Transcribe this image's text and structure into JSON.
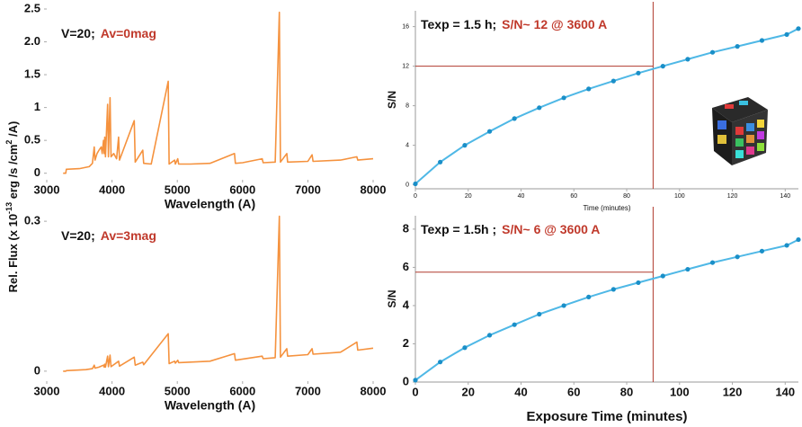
{
  "shared_ylabel": [
    "Rel. Flux (x 10",
    "-13",
    " erg /s /cm",
    "2",
    " /A)"
  ],
  "chart_data": [
    {
      "type": "line",
      "markers": false,
      "color": "#f5923e",
      "annotation": [
        "V=20;",
        "Av=0mag"
      ],
      "annotation_colors": [
        "#111111",
        "#c0392b"
      ],
      "xlabel": "Wavelength (A)",
      "x": [
        3250,
        3290,
        3300,
        3500,
        3650,
        3700,
        3727,
        3740,
        3770,
        3800,
        3835,
        3850,
        3869,
        3880,
        3889,
        3900,
        3933,
        3945,
        3970,
        3985,
        4026,
        4070,
        4101,
        4115,
        4340,
        4355,
        4471,
        4485,
        4600,
        4861,
        4875,
        4959,
        4970,
        5007,
        5020,
        5200,
        5500,
        5876,
        5890,
        6000,
        6300,
        6315,
        6500,
        6563,
        6580,
        6678,
        6690,
        7000,
        7065,
        7080,
        7500,
        7751,
        7765,
        8000
      ],
      "values": [
        0,
        0,
        0.06,
        0.07,
        0.1,
        0.15,
        0.4,
        0.2,
        0.3,
        0.35,
        0.4,
        0.3,
        0.5,
        0.3,
        0.55,
        0.25,
        1.05,
        0.25,
        1.15,
        0.25,
        0.3,
        0.22,
        0.55,
        0.2,
        0.8,
        0.17,
        0.35,
        0.15,
        0.14,
        1.4,
        0.14,
        0.2,
        0.14,
        0.22,
        0.14,
        0.14,
        0.15,
        0.3,
        0.15,
        0.16,
        0.22,
        0.16,
        0.17,
        2.45,
        0.17,
        0.3,
        0.17,
        0.18,
        0.28,
        0.18,
        0.2,
        0.25,
        0.2,
        0.22
      ],
      "xlim": [
        3000,
        8000
      ],
      "xticks": [
        3000,
        4000,
        5000,
        6000,
        7000,
        8000
      ],
      "ylim": [
        -0.1,
        2.5
      ],
      "yticks": [
        0,
        0.5,
        1,
        1.5,
        {
          "value": 2,
          "label": "2.0"
        },
        2.5
      ]
    },
    {
      "type": "line",
      "markers": false,
      "color": "#f5923e",
      "annotation": [
        "V=20;",
        "Av=3mag"
      ],
      "annotation_colors": [
        "#111111",
        "#c0392b"
      ],
      "xlabel": "Wavelength (A)",
      "x": [
        3250,
        3290,
        3300,
        3600,
        3700,
        3727,
        3740,
        3800,
        3869,
        3880,
        3889,
        3900,
        3933,
        3945,
        3970,
        3985,
        4101,
        4115,
        4340,
        4355,
        4471,
        4485,
        4861,
        4875,
        4959,
        4970,
        5007,
        5020,
        5500,
        5876,
        5890,
        6300,
        6315,
        6500,
        6563,
        6580,
        6678,
        6690,
        7000,
        7065,
        7080,
        7500,
        7751,
        7765,
        8000
      ],
      "values": [
        0,
        0,
        0.001,
        0.003,
        0.005,
        0.012,
        0.006,
        0.008,
        0.012,
        0.008,
        0.014,
        0.008,
        0.03,
        0.009,
        0.032,
        0.009,
        0.02,
        0.01,
        0.028,
        0.012,
        0.018,
        0.013,
        0.075,
        0.015,
        0.02,
        0.016,
        0.022,
        0.017,
        0.02,
        0.035,
        0.022,
        0.03,
        0.025,
        0.027,
        0.31,
        0.028,
        0.045,
        0.03,
        0.033,
        0.045,
        0.034,
        0.038,
        0.058,
        0.042,
        0.046
      ],
      "xlim": [
        3000,
        8000
      ],
      "xticks": [
        3000,
        4000,
        5000,
        6000,
        7000,
        8000
      ],
      "ylim": [
        -0.02,
        0.32
      ],
      "yticks": [
        0,
        0.3
      ]
    },
    {
      "type": "line",
      "markers": true,
      "color": "#4fb8e6",
      "annotation": [
        "Texp = 1.5 h;",
        "S/N~ 12 @ 3600 A"
      ],
      "annotation_colors": [
        "#111111",
        "#c0392b"
      ],
      "xlabel": "Time (minutes)",
      "ylabel": "S/N",
      "refline_color": "#b03a2e",
      "x": [
        0,
        9.4,
        18.7,
        28.1,
        37.5,
        46.9,
        56.2,
        65.6,
        75,
        84.4,
        93.7,
        103.1,
        112.5,
        121.9,
        131.2,
        140.6,
        145
      ],
      "values": [
        0.1,
        2.3,
        4.0,
        5.4,
        6.7,
        7.8,
        8.8,
        9.7,
        10.5,
        11.3,
        12.0,
        12.7,
        13.4,
        14.0,
        14.6,
        15.2,
        15.8
      ],
      "vline": 90,
      "hline": 12,
      "xlim": [
        0,
        145
      ],
      "xticks": [
        0,
        20,
        40,
        60,
        80,
        100,
        120,
        140
      ],
      "ylim": [
        -0.4,
        17.6
      ],
      "yticks": [
        0,
        4,
        8,
        12,
        16
      ]
    },
    {
      "type": "line",
      "markers": true,
      "color": "#4fb8e6",
      "annotation": [
        "Texp = 1.5h ;",
        "S/N~ 6 @ 3600 A"
      ],
      "annotation_colors": [
        "#111111",
        "#c0392b"
      ],
      "xlabel": "Exposure Time (minutes)",
      "ylabel": "S/N",
      "refline_color": "#b03a2e",
      "x": [
        0,
        9.4,
        18.7,
        28.1,
        37.5,
        46.9,
        56.2,
        65.6,
        75,
        84.4,
        93.7,
        103.1,
        112.5,
        121.9,
        131.2,
        140.6,
        145
      ],
      "values": [
        0.1,
        1.05,
        1.8,
        2.45,
        3.0,
        3.55,
        4.0,
        4.45,
        4.85,
        5.2,
        5.55,
        5.9,
        6.25,
        6.55,
        6.85,
        7.15,
        7.45
      ],
      "vline": 90,
      "hline": 5.75,
      "xlim": [
        0,
        145
      ],
      "xticks": [
        0,
        20,
        40,
        60,
        80,
        100,
        120,
        140
      ],
      "ylim": [
        0,
        8.7
      ],
      "yticks": [
        0,
        2,
        4,
        6,
        8
      ]
    }
  ]
}
